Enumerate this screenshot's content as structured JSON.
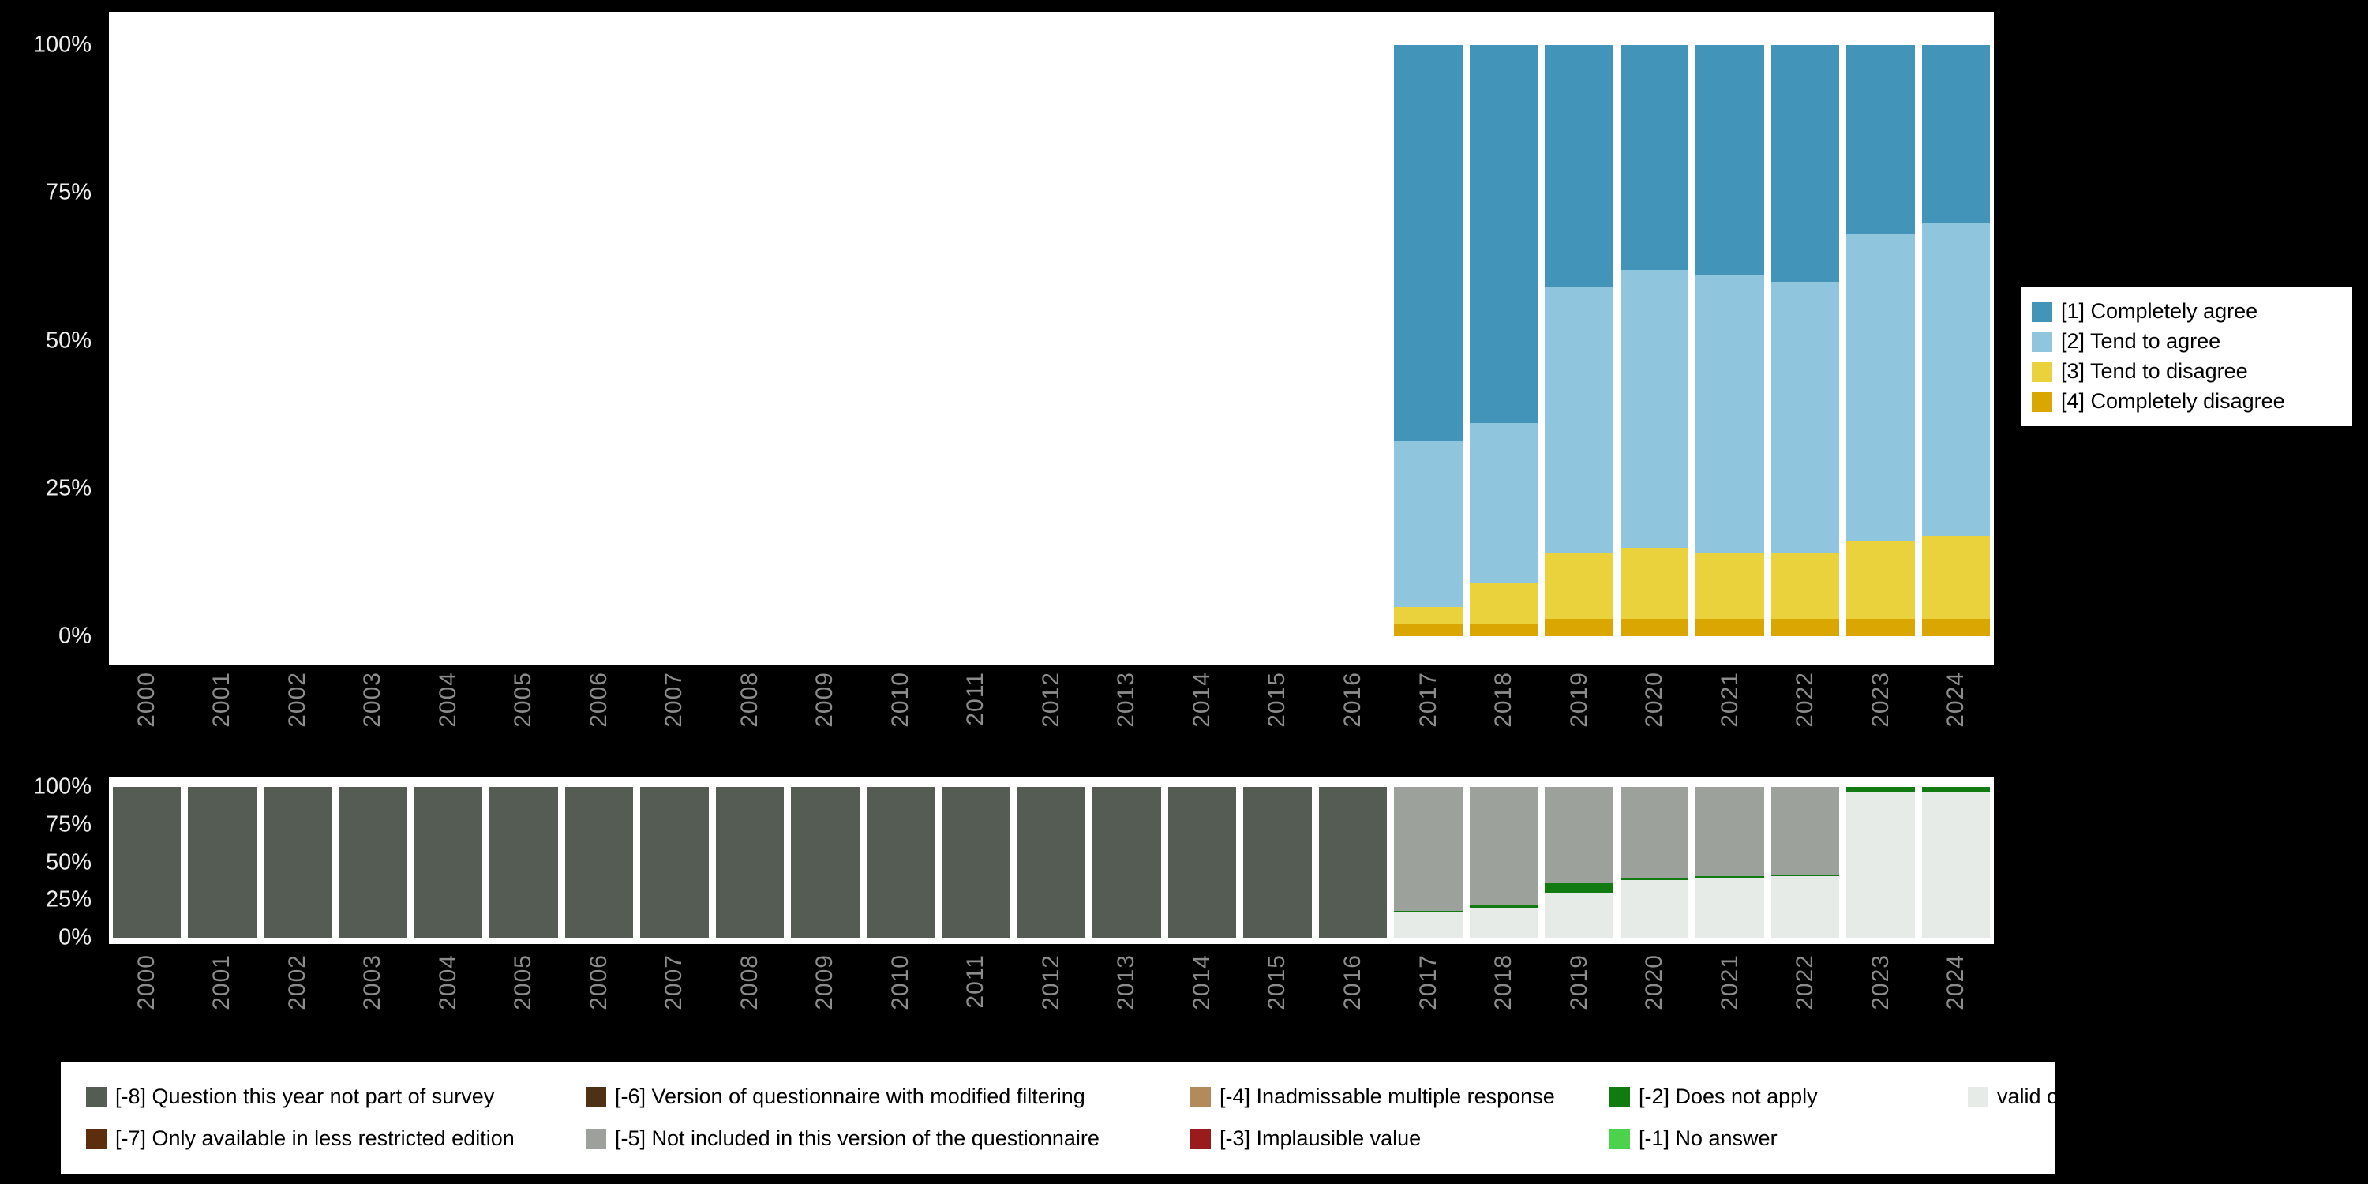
{
  "page": {
    "background": "#000000",
    "panel_background": "#ffffff",
    "axis_text_color": "#EDEDED",
    "year_label_color": "#8C8C8C"
  },
  "chart_data": [
    {
      "id": "responses",
      "type": "bar",
      "stacked": true,
      "unit": "%",
      "title": "",
      "xlabel": "",
      "ylabel": "",
      "ylim": [
        0,
        100
      ],
      "y_ticks": [
        "0%",
        "25%",
        "50%",
        "75%",
        "100%"
      ],
      "grid": false,
      "legend_position": "right",
      "categories": [
        "2000",
        "2001",
        "2002",
        "2003",
        "2004",
        "2005",
        "2006",
        "2007",
        "2008",
        "2009",
        "2010",
        "2011",
        "2012",
        "2013",
        "2014",
        "2015",
        "2016",
        "2017",
        "2018",
        "2019",
        "2020",
        "2021",
        "2022",
        "2023",
        "2024"
      ],
      "series": [
        {
          "name": "[4] Completely disagree",
          "color": "#D9A602",
          "values": [
            0,
            0,
            0,
            0,
            0,
            0,
            0,
            0,
            0,
            0,
            0,
            0,
            0,
            0,
            0,
            0,
            0,
            2,
            2,
            3,
            3,
            3,
            3,
            3,
            3
          ]
        },
        {
          "name": "[3] Tend to disagree",
          "color": "#E9D23C",
          "values": [
            0,
            0,
            0,
            0,
            0,
            0,
            0,
            0,
            0,
            0,
            0,
            0,
            0,
            0,
            0,
            0,
            0,
            3,
            7,
            11,
            12,
            11,
            11,
            13,
            14
          ]
        },
        {
          "name": "[2] Tend to agree",
          "color": "#8FC6DD",
          "values": [
            0,
            0,
            0,
            0,
            0,
            0,
            0,
            0,
            0,
            0,
            0,
            0,
            0,
            0,
            0,
            0,
            0,
            28,
            27,
            45,
            47,
            47,
            46,
            52,
            53
          ]
        },
        {
          "name": "[1] Completely agree",
          "color": "#4394B9",
          "values": [
            0,
            0,
            0,
            0,
            0,
            0,
            0,
            0,
            0,
            0,
            0,
            0,
            0,
            0,
            0,
            0,
            0,
            67,
            64,
            41,
            38,
            39,
            40,
            32,
            30
          ]
        }
      ],
      "legend": [
        {
          "label": "[1] Completely agree",
          "color": "#4394B9"
        },
        {
          "label": "[2] Tend to agree",
          "color": "#8FC6DD"
        },
        {
          "label": "[3] Tend to disagree",
          "color": "#E9D23C"
        },
        {
          "label": "[4] Completely disagree",
          "color": "#D9A602"
        }
      ]
    },
    {
      "id": "missing-values",
      "type": "bar",
      "stacked": true,
      "unit": "%",
      "title": "",
      "xlabel": "",
      "ylabel": "",
      "ylim": [
        0,
        100
      ],
      "y_ticks": [
        "0%",
        "25%",
        "50%",
        "75%",
        "100%"
      ],
      "grid": false,
      "legend_position": "bottom",
      "categories": [
        "2000",
        "2001",
        "2002",
        "2003",
        "2004",
        "2005",
        "2006",
        "2007",
        "2008",
        "2009",
        "2010",
        "2011",
        "2012",
        "2013",
        "2014",
        "2015",
        "2016",
        "2017",
        "2018",
        "2019",
        "2020",
        "2021",
        "2022",
        "2023",
        "2024"
      ],
      "series": [
        {
          "name": "valid cases",
          "color": "#E7EBE7",
          "values": [
            0,
            0,
            0,
            0,
            0,
            0,
            0,
            0,
            0,
            0,
            0,
            0,
            0,
            0,
            0,
            0,
            0,
            17,
            20,
            30,
            38,
            40,
            41,
            97,
            97
          ]
        },
        {
          "name": "[-1] No answer",
          "color": "#4CD24C",
          "values": [
            0,
            0,
            0,
            0,
            0,
            0,
            0,
            0,
            0,
            0,
            0,
            0,
            0,
            0,
            0,
            0,
            0,
            0,
            0,
            0,
            0,
            0,
            0,
            0,
            0
          ]
        },
        {
          "name": "[-2] Does not apply",
          "color": "#117A11",
          "values": [
            0,
            0,
            0,
            0,
            0,
            0,
            0,
            0,
            0,
            0,
            0,
            0,
            0,
            0,
            0,
            0,
            0,
            1,
            2,
            6,
            2,
            1,
            1,
            3,
            3
          ]
        },
        {
          "name": "[-3] Implausible value",
          "color": "#9A1B1B",
          "values": [
            0,
            0,
            0,
            0,
            0,
            0,
            0,
            0,
            0,
            0,
            0,
            0,
            0,
            0,
            0,
            0,
            0,
            0,
            0,
            0,
            0,
            0,
            0,
            0,
            0
          ]
        },
        {
          "name": "[-4] Inadmissable multiple response",
          "color": "#B28B5C",
          "values": [
            0,
            0,
            0,
            0,
            0,
            0,
            0,
            0,
            0,
            0,
            0,
            0,
            0,
            0,
            0,
            0,
            0,
            0,
            0,
            0,
            0,
            0,
            0,
            0,
            0
          ]
        },
        {
          "name": "[-5] Not included in this version of the questionnaire",
          "color": "#9DA19C",
          "values": [
            0,
            0,
            0,
            0,
            0,
            0,
            0,
            0,
            0,
            0,
            0,
            0,
            0,
            0,
            0,
            0,
            0,
            82,
            78,
            64,
            60,
            59,
            58,
            0,
            0
          ]
        },
        {
          "name": "[-6] Version of questionnaire with modified filtering",
          "color": "#4E3115",
          "values": [
            0,
            0,
            0,
            0,
            0,
            0,
            0,
            0,
            0,
            0,
            0,
            0,
            0,
            0,
            0,
            0,
            0,
            0,
            0,
            0,
            0,
            0,
            0,
            0,
            0
          ]
        },
        {
          "name": "[-7] Only available in less restricted edition",
          "color": "#5C2E0E",
          "values": [
            0,
            0,
            0,
            0,
            0,
            0,
            0,
            0,
            0,
            0,
            0,
            0,
            0,
            0,
            0,
            0,
            0,
            0,
            0,
            0,
            0,
            0,
            0,
            0,
            0
          ]
        },
        {
          "name": "[-8] Question this year not part of survey",
          "color": "#545C54",
          "values": [
            100,
            100,
            100,
            100,
            100,
            100,
            100,
            100,
            100,
            100,
            100,
            100,
            100,
            100,
            100,
            100,
            100,
            0,
            0,
            0,
            0,
            0,
            0,
            0,
            0
          ]
        }
      ],
      "legend": [
        {
          "label": "[-8] Question this year not part of survey",
          "color": "#545C54"
        },
        {
          "label": "[-7] Only available in less restricted edition",
          "color": "#5C2E0E"
        },
        {
          "label": "[-6] Version of questionnaire with modified filtering",
          "color": "#4E3115"
        },
        {
          "label": "[-5] Not included in this version of the questionnaire",
          "color": "#9DA19C"
        },
        {
          "label": "[-4] Inadmissable multiple response",
          "color": "#B28B5C"
        },
        {
          "label": "[-3] Implausible value",
          "color": "#9A1B1B"
        },
        {
          "label": "[-2] Does not apply",
          "color": "#117A11"
        },
        {
          "label": "[-1] No answer",
          "color": "#4CD24C"
        },
        {
          "label": "valid cases",
          "color": "#E7EBE7"
        }
      ]
    }
  ]
}
